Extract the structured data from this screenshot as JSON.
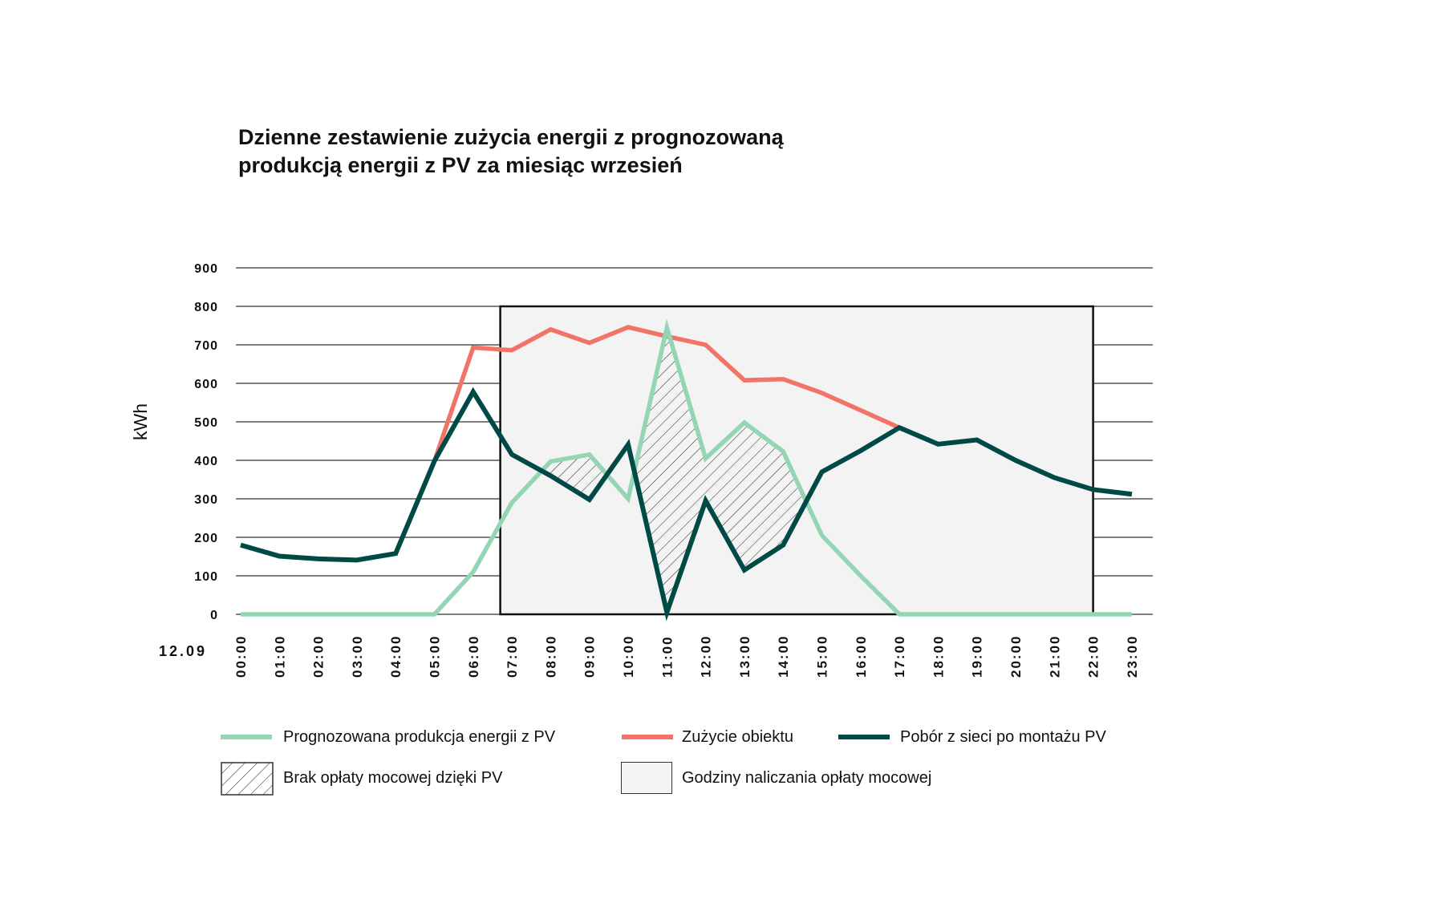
{
  "title": {
    "line1": "Dzienne zestawienie zużycia energii z prognozowaną",
    "line2": "produkcją energii z PV za miesiąc wrzesień"
  },
  "colors": {
    "pv": "#94d5b4",
    "consumption": "#f27468",
    "grid_draw": "#004a45",
    "band_fill": "#f3f3f3",
    "band_border": "#111111",
    "gridline": "#333333"
  },
  "chart_data": {
    "type": "line",
    "title": "Dzienne zestawienie zużycia energii z prognozowaną produkcją energii z PV za miesiąc wrzesień",
    "ylabel": "kWh",
    "xlabel": "",
    "date_label": "12.09",
    "ylim": [
      0,
      900
    ],
    "yticks": [
      0,
      100,
      200,
      300,
      400,
      500,
      600,
      700,
      800,
      900
    ],
    "grid": "horizontal",
    "categories": [
      "00:00",
      "01:00",
      "02:00",
      "03:00",
      "04:00",
      "05:00",
      "06:00",
      "07:00",
      "08:00",
      "09:00",
      "10:00",
      "11:00",
      "12:00",
      "13:00",
      "14:00",
      "15:00",
      "16:00",
      "17:00",
      "18:00",
      "19:00",
      "20:00",
      "21:00",
      "22:00",
      "23:00"
    ],
    "series": [
      {
        "name": "Prognozowana produkcja energii z PV",
        "color": "#94d5b4",
        "values": [
          0,
          0,
          0,
          0,
          0,
          0,
          110,
          290,
          397,
          415,
          300,
          745,
          405,
          498,
          423,
          205,
          100,
          0,
          0,
          0,
          0,
          0,
          0,
          0
        ]
      },
      {
        "name": "Zużycie obiektu",
        "color": "#f27468",
        "values": [
          180,
          151,
          144,
          141,
          158,
          398,
          693,
          686,
          740,
          705,
          746,
          722,
          700,
          608,
          611,
          575,
          530,
          485,
          442,
          453,
          400,
          355,
          324,
          312
        ]
      },
      {
        "name": "Pobór z sieci po montażu PV",
        "color": "#004a45",
        "values": [
          180,
          151,
          144,
          141,
          158,
          398,
          578,
          415,
          360,
          298,
          441,
          5,
          295,
          115,
          180,
          370,
          425,
          485,
          442,
          453,
          400,
          355,
          324,
          312
        ]
      }
    ],
    "bands": [
      {
        "name": "Godziny naliczania opłaty mocowej",
        "from_hour": 6.7,
        "to_hour": 22,
        "top": 800
      }
    ],
    "hatched_area": {
      "name": "Brak opłaty mocowej dzięki PV",
      "between": [
        "Prognozowana produkcja energii z PV",
        "Pobór z sieci po montażu PV"
      ]
    },
    "legend_position": "bottom"
  },
  "legend": {
    "pv": "Prognozowana produkcja energii z PV",
    "consumption": "Zużycie obiektu",
    "grid_draw": "Pobór z sieci po montażu PV",
    "hatched": "Brak opłaty mocowej dzięki PV",
    "band": "Godziny naliczania opłaty mocowej"
  }
}
